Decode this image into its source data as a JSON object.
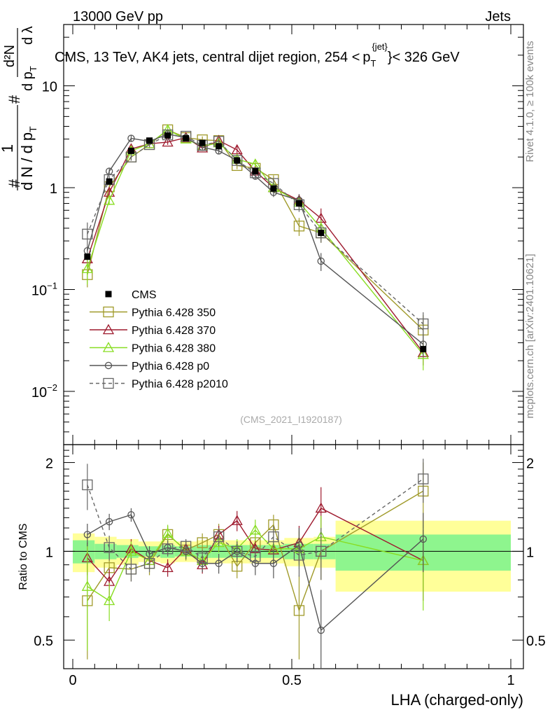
{
  "header": {
    "left": "13000 GeV pp",
    "right": "Jets"
  },
  "side_labels": {
    "rivet": "Rivet 4.1.0, ≥ 100k events",
    "mcplots": "mcplots.cern.ch [arXiv:2401.10621]"
  },
  "chart_data": {
    "type": "line",
    "title": "CMS, 13 TeV, AK4 jets, central dijet region, 254 < p_T^{jet} < 326 GeV",
    "title_parts": {
      "prefix": "CMS, 13 TeV, AK4 jets, central dijet region, 254 <",
      "p": "p",
      "sub": "T",
      "sup": "{jet}",
      "suffix": "}< 326 GeV"
    },
    "watermark": "(CMS_2021_I1920187)",
    "xlabel": "LHA (charged-only)",
    "ylabel_main": {
      "frac1_num": "1",
      "frac1_den": "d N / d p",
      "frac2_num": "d²N",
      "frac2_den": "d p",
      "lambda": "d λ",
      "sub": "T",
      "hash": "#"
    },
    "ylabel_ratio": "Ratio to CMS",
    "xlim": [
      0,
      1
    ],
    "ylim_main": [
      0.003,
      40
    ],
    "ylim_ratio": [
      0.4,
      2.3
    ],
    "yscale_main": "log",
    "yscale_ratio": "log",
    "x_ticks": [
      0,
      0.5,
      1
    ],
    "x_tick_labels": [
      "0",
      "0.5",
      "1"
    ],
    "y_ticks_main": [
      0.01,
      0.1,
      1,
      10
    ],
    "y_ticks_main_labels": [
      {
        "base": "10",
        "exp": "−2"
      },
      {
        "base": "10",
        "exp": "−1"
      },
      {
        "base": "1",
        "exp": ""
      },
      {
        "base": "10",
        "exp": ""
      }
    ],
    "y_ticks_ratio": [
      0.5,
      1,
      2
    ],
    "y_ticks_ratio_labels": [
      "0.5",
      "1",
      "2"
    ],
    "x": [
      0.0333,
      0.0833,
      0.1333,
      0.175,
      0.2167,
      0.2583,
      0.2958,
      0.3333,
      0.375,
      0.4167,
      0.4583,
      0.5167,
      0.5667,
      0.8
    ],
    "bin_edges": [
      0,
      0.05,
      0.1,
      0.15,
      0.2,
      0.233,
      0.283,
      0.317,
      0.35,
      0.4,
      0.433,
      0.483,
      0.55,
      0.6,
      1.0
    ],
    "data_series": {
      "name": "CMS",
      "values": [
        0.21,
        1.15,
        2.3,
        2.9,
        3.25,
        3.05,
        2.75,
        2.55,
        1.85,
        1.45,
        0.98,
        0.7,
        0.36,
        0.026
      ]
    },
    "band_inner": [
      0.09,
      0.06,
      0.05,
      0.04,
      0.05,
      0.04,
      0.05,
      0.05,
      0.05,
      0.05,
      0.05,
      0.06,
      0.06,
      0.14
    ],
    "band_outer": [
      0.15,
      0.12,
      0.1,
      0.08,
      0.09,
      0.08,
      0.09,
      0.09,
      0.09,
      0.09,
      0.09,
      0.11,
      0.12,
      0.27
    ],
    "series": [
      {
        "name": "Pythia 6.428 350",
        "color": "#a09a2a",
        "marker": "square-open",
        "dash": false,
        "values": [
          0.14,
          1.02,
          2.0,
          2.65,
          3.7,
          3.1,
          2.95,
          2.9,
          1.65,
          1.55,
          1.2,
          0.42,
          0.36,
          0.04
        ],
        "ratio": [
          0.68,
          0.88,
          0.87,
          0.91,
          1.14,
          1.01,
          1.07,
          1.14,
          0.89,
          1.07,
          1.23,
          0.63,
          1.0,
          1.6
        ],
        "ratio_err": [
          0.25,
          0.1,
          0.08,
          0.08,
          0.08,
          0.08,
          0.08,
          0.1,
          0.08,
          0.08,
          0.1,
          0.2,
          0.2,
          0.4
        ]
      },
      {
        "name": "Pythia 6.428 370",
        "color": "#9e1a2e",
        "marker": "triangle-open",
        "dash": false,
        "values": [
          0.2,
          0.9,
          2.4,
          2.7,
          2.8,
          3.1,
          2.45,
          2.9,
          2.35,
          1.45,
          1.0,
          0.75,
          0.5,
          0.024
        ],
        "ratio": [
          0.95,
          0.79,
          1.02,
          0.93,
          0.88,
          1.02,
          0.9,
          1.14,
          1.27,
          1.02,
          1.01,
          1.07,
          1.4,
          0.93
        ],
        "ratio_err": [
          0.12,
          0.08,
          0.08,
          0.06,
          0.06,
          0.06,
          0.06,
          0.08,
          0.1,
          0.08,
          0.1,
          0.15,
          0.25,
          0.25
        ]
      },
      {
        "name": "Pythia 6.428 380",
        "color": "#88dd22",
        "marker": "triangle-open",
        "dash": false,
        "values": [
          0.16,
          0.75,
          2.3,
          2.7,
          3.7,
          3.0,
          2.55,
          2.75,
          1.9,
          1.7,
          1.0,
          0.72,
          0.4,
          0.023
        ],
        "ratio": [
          0.76,
          0.68,
          1.0,
          0.93,
          1.15,
          1.0,
          0.93,
          1.07,
          1.02,
          1.18,
          1.02,
          1.02,
          1.12,
          0.93
        ],
        "ratio_err": [
          0.3,
          0.1,
          0.08,
          0.06,
          0.08,
          0.06,
          0.06,
          0.08,
          0.08,
          0.1,
          0.1,
          0.15,
          0.2,
          0.3
        ]
      },
      {
        "name": "Pythia 6.428 p0",
        "color": "#555555",
        "marker": "circle-open",
        "dash": false,
        "values": [
          0.24,
          1.45,
          3.05,
          2.85,
          3.35,
          3.1,
          2.5,
          2.3,
          1.85,
          1.3,
          0.9,
          0.75,
          0.19,
          0.029
        ],
        "ratio": [
          1.14,
          1.26,
          1.33,
          0.98,
          1.03,
          1.0,
          0.91,
          0.91,
          1.0,
          0.91,
          0.91,
          1.05,
          0.54,
          1.1
        ],
        "ratio_err": [
          0.1,
          0.08,
          0.07,
          0.06,
          0.06,
          0.06,
          0.06,
          0.07,
          0.08,
          0.08,
          0.1,
          0.15,
          0.2,
          0.25
        ]
      },
      {
        "name": "Pythia 6.428 p2010",
        "color": "#666666",
        "marker": "square-open",
        "dash": true,
        "values": [
          0.35,
          1.2,
          2.0,
          2.65,
          3.3,
          3.2,
          2.6,
          2.85,
          1.85,
          1.4,
          1.1,
          0.68,
          0.36,
          0.046
        ],
        "ratio": [
          1.68,
          1.03,
          0.87,
          0.91,
          1.02,
          1.04,
          0.95,
          1.12,
          1.0,
          0.96,
          1.12,
          0.97,
          1.0,
          1.76
        ],
        "ratio_err": [
          0.3,
          0.1,
          0.08,
          0.06,
          0.06,
          0.06,
          0.06,
          0.08,
          0.08,
          0.08,
          0.1,
          0.15,
          0.2,
          0.3
        ]
      }
    ],
    "legend": {
      "placement": "lower-left",
      "entries": [
        "CMS",
        "Pythia 6.428 350",
        "Pythia 6.428 370",
        "Pythia 6.428 380",
        "Pythia 6.428 p0",
        "Pythia 6.428 p2010"
      ]
    },
    "colors": {
      "band_inner": "#8ef58e",
      "band_outer": "#ffff99",
      "data": "#000000"
    }
  }
}
